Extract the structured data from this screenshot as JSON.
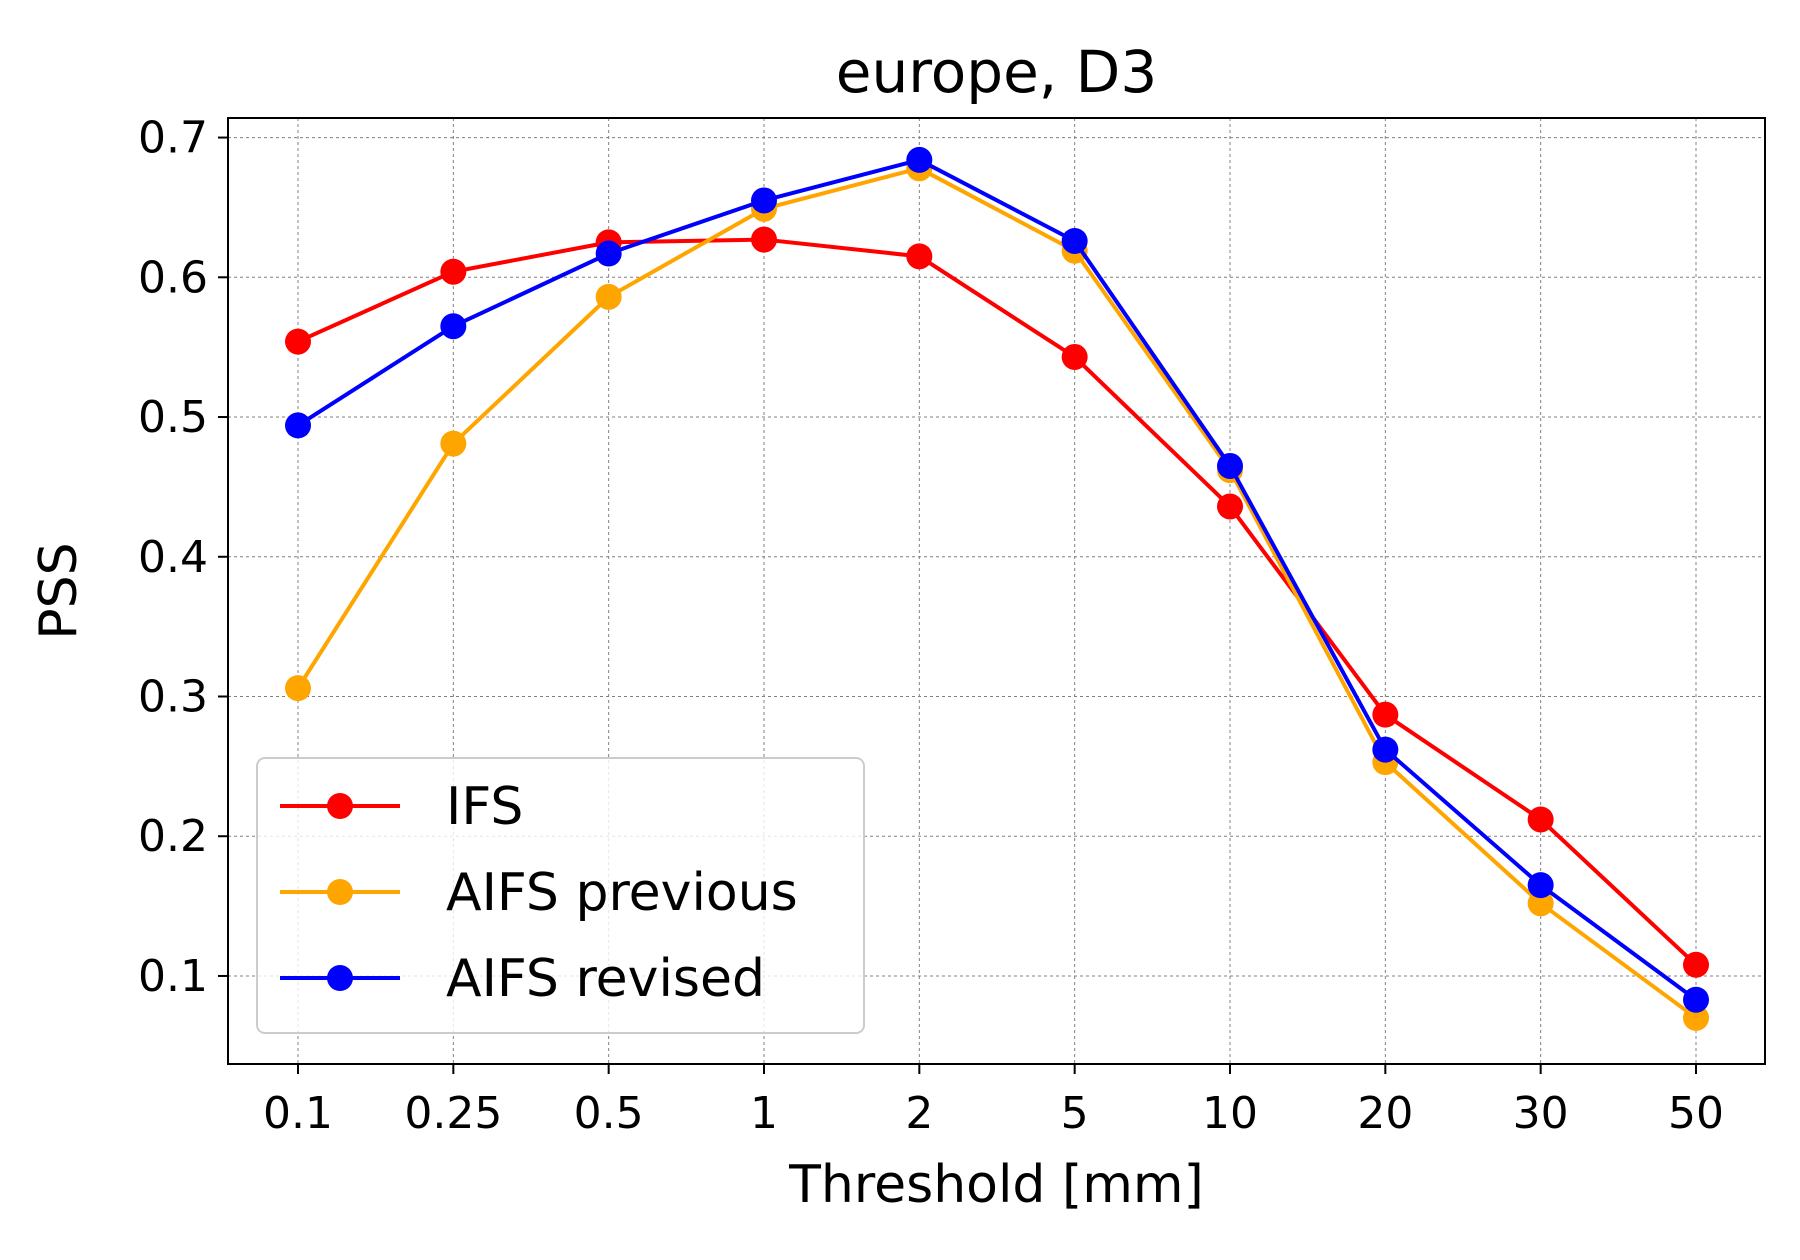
{
  "chart_data": {
    "type": "line",
    "title": "europe, D3",
    "xlabel": "Threshold [mm]",
    "ylabel": "PSS",
    "categories": [
      "0.1",
      "0.25",
      "0.5",
      "1",
      "2",
      "5",
      "10",
      "20",
      "30",
      "50"
    ],
    "ylim": [
      0.037,
      0.714
    ],
    "yticks": [
      "0.1",
      "0.2",
      "0.3",
      "0.4",
      "0.5",
      "0.6",
      "0.7"
    ],
    "grid": true,
    "legend_position": "lower-left",
    "series": [
      {
        "name": "IFS",
        "color": "#ff0000",
        "values": [
          0.554,
          0.604,
          0.625,
          0.627,
          0.615,
          0.543,
          0.436,
          0.287,
          0.212,
          0.108
        ]
      },
      {
        "name": "AIFS previous",
        "color": "#ffa500",
        "values": [
          0.306,
          0.481,
          0.586,
          0.649,
          0.678,
          0.619,
          0.462,
          0.253,
          0.152,
          0.07
        ]
      },
      {
        "name": "AIFS revised",
        "color": "#0000ff",
        "values": [
          0.494,
          0.565,
          0.617,
          0.655,
          0.684,
          0.626,
          0.465,
          0.262,
          0.165,
          0.083
        ]
      }
    ]
  }
}
